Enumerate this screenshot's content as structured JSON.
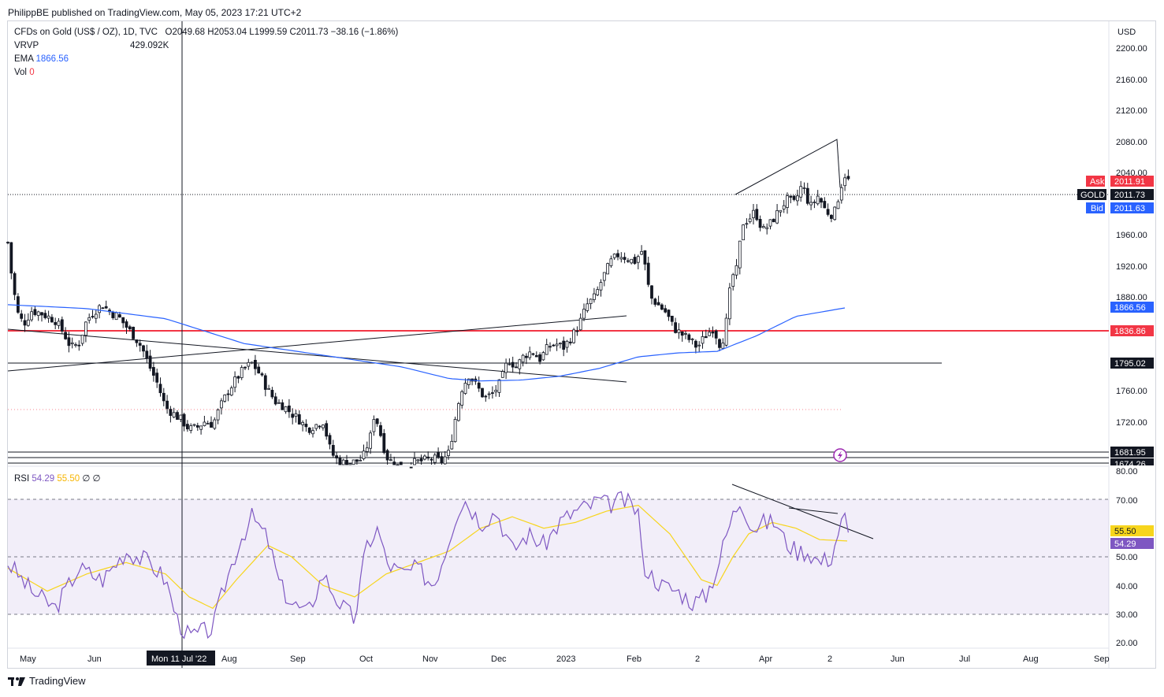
{
  "header": {
    "published": "PhilippBE published on TradingView.com, May 05, 2023 17:21 UTC+2"
  },
  "legend": {
    "symbol": "CFDs on Gold (US$ / OZ), 1D, TVC",
    "ohlc": "O2049.68  H2053.04  L1999.59  C2011.73  −38.16 (−1.86%)",
    "vrvp_label": "VRVP",
    "vrvp_value": "429.092K",
    "ema_label": "EMA",
    "ema_value": "1866.56",
    "vol_label": "Vol",
    "vol_value": "0",
    "rsi_label": "RSI",
    "rsi_value": "54.29",
    "rsi_ma_value": "55.50",
    "rsi_extra": "∅ ∅"
  },
  "axis": {
    "currency": "USD",
    "price_ticks": [
      "2200.00",
      "2160.00",
      "2120.00",
      "2080.00",
      "2040.00",
      "1960.00",
      "1920.00",
      "1880.00",
      "1760.00",
      "1720.00"
    ],
    "rsi_ticks": [
      "80.00",
      "70.00",
      "50.00",
      "40.00",
      "30.00",
      "20.00"
    ],
    "time_labels": [
      "May",
      "Jun",
      "Aug",
      "Sep",
      "Oct",
      "Nov",
      "Dec",
      "2023",
      "Feb",
      "2",
      "Apr",
      "2",
      "Jun",
      "Jul",
      "Aug",
      "Sep"
    ],
    "crosshair_date": "Mon 11 Jul '22"
  },
  "price_tags": {
    "ask": {
      "label": "Ask",
      "value": "2011.91"
    },
    "gold": {
      "label": "GOLD",
      "value": "2011.73"
    },
    "bid": {
      "label": "Bid",
      "value": "2011.63"
    },
    "ema": "1866.56",
    "red_line": "1836.86",
    "black_line": "1795.02",
    "low_line": "1681.95",
    "low_line2": "1674.26",
    "rsi_ma": "55.50",
    "rsi": "54.29"
  },
  "colors": {
    "ema": "#2962ff",
    "red": "#f23645",
    "rsi": "#7e57c2",
    "rsi_ma": "#f7d51d",
    "ask": "#f23645",
    "bid": "#2962ff",
    "purple_icon": "#9c27b0"
  },
  "chart_data": [
    {
      "type": "candlestick",
      "title": "CFDs on Gold (US$ / OZ), 1D, TVC",
      "x_range": [
        "2022-05",
        "2023-09"
      ],
      "ylim": [
        1668,
        2230
      ],
      "close_path": [
        [
          0,
          1950
        ],
        [
          5,
          1905
        ],
        [
          12,
          1860
        ],
        [
          20,
          1845
        ],
        [
          30,
          1862
        ],
        [
          40,
          1860
        ],
        [
          50,
          1855
        ],
        [
          60,
          1850
        ],
        [
          70,
          1835
        ],
        [
          80,
          1815
        ],
        [
          90,
          1820
        ],
        [
          100,
          1850
        ],
        [
          110,
          1862
        ],
        [
          120,
          1870
        ],
        [
          130,
          1860
        ],
        [
          140,
          1855
        ],
        [
          150,
          1842
        ],
        [
          160,
          1830
        ],
        [
          170,
          1815
        ],
        [
          180,
          1790
        ],
        [
          190,
          1768
        ],
        [
          200,
          1738
        ],
        [
          210,
          1730
        ],
        [
          220,
          1722
        ],
        [
          230,
          1710
        ],
        [
          240,
          1712
        ],
        [
          250,
          1720
        ],
        [
          260,
          1716
        ],
        [
          270,
          1740
        ],
        [
          280,
          1760
        ],
        [
          290,
          1775
        ],
        [
          300,
          1788
        ],
        [
          310,
          1795
        ],
        [
          320,
          1780
        ],
        [
          330,
          1760
        ],
        [
          340,
          1745
        ],
        [
          350,
          1740
        ],
        [
          360,
          1730
        ],
        [
          370,
          1722
        ],
        [
          380,
          1710
        ],
        [
          390,
          1715
        ],
        [
          400,
          1720
        ],
        [
          410,
          1680
        ],
        [
          420,
          1668
        ],
        [
          430,
          1666
        ],
        [
          440,
          1668
        ],
        [
          450,
          1672
        ],
        [
          460,
          1700
        ],
        [
          465,
          1730
        ],
        [
          470,
          1715
        ],
        [
          480,
          1675
        ],
        [
          490,
          1665
        ],
        [
          500,
          1660
        ],
        [
          510,
          1665
        ],
        [
          520,
          1668
        ],
        [
          530,
          1670
        ],
        [
          540,
          1672
        ],
        [
          550,
          1668
        ],
        [
          560,
          1680
        ],
        [
          565,
          1710
        ],
        [
          575,
          1760
        ],
        [
          585,
          1780
        ],
        [
          595,
          1765
        ],
        [
          605,
          1750
        ],
        [
          615,
          1755
        ],
        [
          625,
          1770
        ],
        [
          635,
          1800
        ],
        [
          645,
          1790
        ],
        [
          655,
          1805
        ],
        [
          665,
          1810
        ],
        [
          675,
          1800
        ],
        [
          685,
          1815
        ],
        [
          695,
          1820
        ],
        [
          705,
          1815
        ],
        [
          715,
          1828
        ],
        [
          725,
          1845
        ],
        [
          735,
          1870
        ],
        [
          745,
          1880
        ],
        [
          755,
          1905
        ],
        [
          765,
          1925
        ],
        [
          775,
          1935
        ],
        [
          785,
          1930
        ],
        [
          795,
          1925
        ],
        [
          805,
          1940
        ],
        [
          810,
          1910
        ],
        [
          815,
          1880
        ],
        [
          825,
          1870
        ],
        [
          835,
          1860
        ],
        [
          845,
          1840
        ],
        [
          855,
          1832
        ],
        [
          865,
          1825
        ],
        [
          875,
          1815
        ],
        [
          885,
          1830
        ],
        [
          895,
          1840
        ],
        [
          905,
          1815
        ],
        [
          912,
          1850
        ],
        [
          918,
          1905
        ],
        [
          925,
          1915
        ],
        [
          932,
          1975
        ],
        [
          940,
          1980
        ],
        [
          948,
          1990
        ],
        [
          958,
          1965
        ],
        [
          968,
          1975
        ],
        [
          978,
          1990
        ],
        [
          988,
          2005
        ],
        [
          998,
          2000
        ],
        [
          1008,
          2025
        ],
        [
          1018,
          1995
        ],
        [
          1028,
          2010
        ],
        [
          1038,
          1990
        ],
        [
          1048,
          1985
        ],
        [
          1058,
          2025
        ],
        [
          1065,
          2045
        ],
        [
          1068,
          2011.73
        ]
      ]
    },
    {
      "type": "line",
      "name": "EMA",
      "value_label": "1866.56",
      "path": [
        [
          0,
          1870
        ],
        [
          100,
          1865
        ],
        [
          200,
          1852
        ],
        [
          300,
          1820
        ],
        [
          400,
          1805
        ],
        [
          500,
          1790
        ],
        [
          560,
          1775
        ],
        [
          600,
          1772
        ],
        [
          650,
          1773
        ],
        [
          700,
          1778
        ],
        [
          750,
          1788
        ],
        [
          800,
          1803
        ],
        [
          850,
          1808
        ],
        [
          900,
          1810
        ],
        [
          950,
          1830
        ],
        [
          1000,
          1855
        ],
        [
          1066,
          1866.56
        ]
      ]
    },
    {
      "type": "line",
      "name": "RSI",
      "ylim": [
        20,
        80
      ],
      "path": [
        [
          0,
          48
        ],
        [
          30,
          38
        ],
        [
          60,
          32
        ],
        [
          90,
          46
        ],
        [
          120,
          42
        ],
        [
          150,
          52
        ],
        [
          180,
          48
        ],
        [
          200,
          42
        ],
        [
          215,
          28
        ],
        [
          230,
          22
        ],
        [
          260,
          25
        ],
        [
          275,
          40
        ],
        [
          295,
          56
        ],
        [
          310,
          64
        ],
        [
          330,
          56
        ],
        [
          345,
          40
        ],
        [
          360,
          34
        ],
        [
          380,
          30
        ],
        [
          400,
          44
        ],
        [
          420,
          34
        ],
        [
          440,
          28
        ],
        [
          455,
          54
        ],
        [
          470,
          60
        ],
        [
          480,
          48
        ],
        [
          500,
          44
        ],
        [
          520,
          46
        ],
        [
          540,
          40
        ],
        [
          555,
          52
        ],
        [
          570,
          66
        ],
        [
          580,
          70
        ],
        [
          600,
          62
        ],
        [
          620,
          66
        ],
        [
          640,
          52
        ],
        [
          660,
          58
        ],
        [
          680,
          54
        ],
        [
          700,
          62
        ],
        [
          720,
          66
        ],
        [
          740,
          68
        ],
        [
          750,
          70
        ],
        [
          760,
          68
        ],
        [
          780,
          70
        ],
        [
          800,
          66
        ],
        [
          805,
          48
        ],
        [
          815,
          44
        ],
        [
          830,
          40
        ],
        [
          850,
          38
        ],
        [
          870,
          34
        ],
        [
          885,
          36
        ],
        [
          900,
          46
        ],
        [
          912,
          58
        ],
        [
          922,
          66
        ],
        [
          930,
          70
        ],
        [
          945,
          60
        ],
        [
          960,
          62
        ],
        [
          975,
          62
        ],
        [
          985,
          56
        ],
        [
          1000,
          52
        ],
        [
          1015,
          52
        ],
        [
          1030,
          48
        ],
        [
          1045,
          50
        ],
        [
          1055,
          60
        ],
        [
          1062,
          64
        ],
        [
          1068,
          54.29
        ]
      ]
    },
    {
      "type": "line",
      "name": "RSI MA",
      "path": [
        [
          0,
          46
        ],
        [
          50,
          38
        ],
        [
          100,
          44
        ],
        [
          150,
          48
        ],
        [
          200,
          44
        ],
        [
          230,
          36
        ],
        [
          260,
          32
        ],
        [
          290,
          42
        ],
        [
          330,
          54
        ],
        [
          360,
          50
        ],
        [
          400,
          40
        ],
        [
          440,
          36
        ],
        [
          480,
          44
        ],
        [
          520,
          48
        ],
        [
          560,
          52
        ],
        [
          600,
          60
        ],
        [
          640,
          64
        ],
        [
          680,
          60
        ],
        [
          720,
          62
        ],
        [
          760,
          66
        ],
        [
          800,
          68
        ],
        [
          840,
          58
        ],
        [
          880,
          42
        ],
        [
          900,
          40
        ],
        [
          920,
          50
        ],
        [
          940,
          58
        ],
        [
          970,
          62
        ],
        [
          1000,
          60
        ],
        [
          1030,
          56
        ],
        [
          1068,
          55.5
        ]
      ]
    }
  ]
}
